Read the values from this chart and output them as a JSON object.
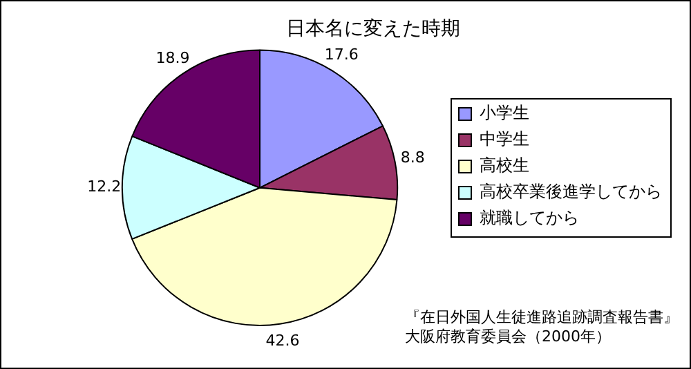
{
  "chart_data": {
    "type": "pie",
    "title": "日本名に変えた時期",
    "categories": [
      "小学生",
      "中学生",
      "高校生",
      "高校卒業後進学してから",
      "就職してから"
    ],
    "values": [
      17.6,
      8.8,
      42.6,
      12.2,
      18.9
    ],
    "colors": [
      "#9999ff",
      "#993366",
      "#ffffcc",
      "#ccffff",
      "#660066"
    ],
    "data_labels": true,
    "legend": "right",
    "annotations": [
      "『在日外国人生徒進路追跡調査報告書』",
      "大阪府教育委員会（2000年）"
    ]
  }
}
